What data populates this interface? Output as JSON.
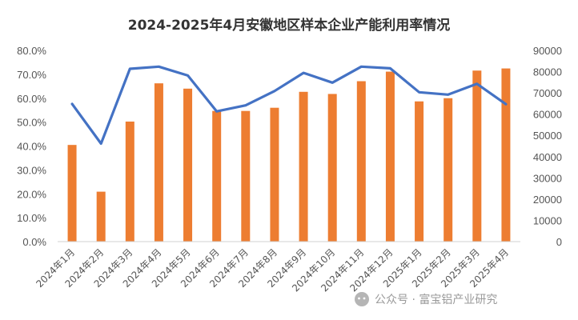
{
  "chart_data": {
    "type": "bar",
    "title": "2024-2025年4月安徽地区样本企业产能利用率情况",
    "categories": [
      "2024年1月",
      "2024年2月",
      "2024年3月",
      "2024年4月",
      "2024年5月",
      "2024年6月",
      "2024年7月",
      "2024年8月",
      "2024年9月",
      "2024年10月",
      "2024年11月",
      "2024年12月",
      "2025年1月",
      "2025年2月",
      "2025年3月",
      "2025年4月"
    ],
    "series": [
      {
        "chart_type": "bar",
        "axis": "right",
        "color": "#ED7D31",
        "values": [
          45500,
          23500,
          56500,
          74500,
          72000,
          61500,
          61500,
          63000,
          70500,
          69500,
          75500,
          80000,
          66000,
          67500,
          80500,
          81500
        ]
      },
      {
        "chart_type": "line",
        "axis": "left",
        "color": "#4472C4",
        "values": [
          57.6,
          41.0,
          72.3,
          73.2,
          69.5,
          54.5,
          57.0,
          63.0,
          70.6,
          66.5,
          73.2,
          72.5,
          62.5,
          61.5,
          66.0,
          57.5
        ]
      }
    ],
    "y_left": {
      "min": 0,
      "max": 80,
      "step": 10,
      "tick_labels": [
        "0.0%",
        "10.0%",
        "20.0%",
        "30.0%",
        "40.0%",
        "50.0%",
        "60.0%",
        "70.0%",
        "80.0%"
      ]
    },
    "y_right": {
      "min": 0,
      "max": 90000,
      "step": 10000,
      "tick_labels": [
        "0",
        "10000",
        "20000",
        "30000",
        "40000",
        "50000",
        "60000",
        "70000",
        "80000",
        "90000"
      ]
    },
    "grid": false,
    "legend": "none"
  },
  "watermark": "公众号 · 富宝铝产业研究",
  "watermark_icon": "wechat-icon"
}
